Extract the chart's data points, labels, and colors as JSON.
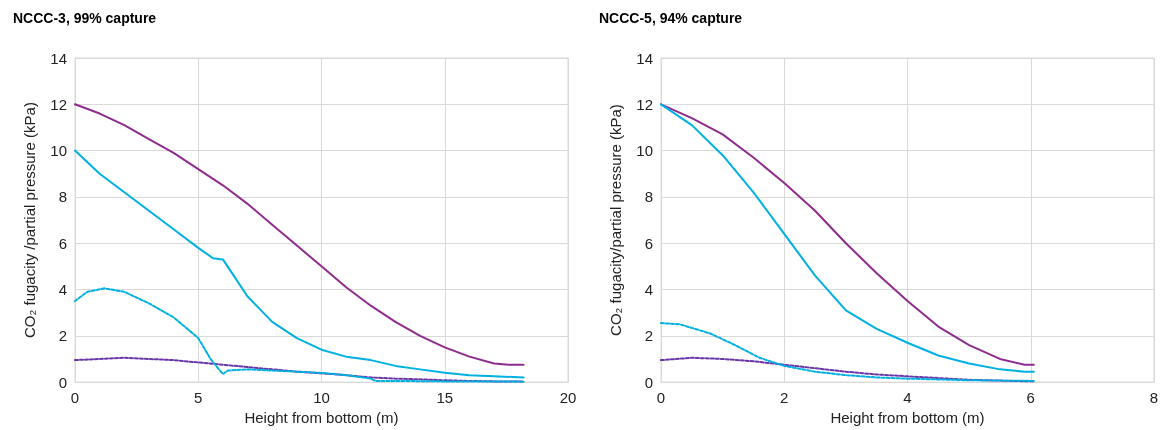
{
  "chart_data": [
    {
      "type": "line",
      "title": "NCCC-3, 99% capture",
      "xlabel": "Height from bottom (m)",
      "ylabel": "CO₂ fugacity /partial pressure (kPa)",
      "xlim": [
        0,
        20
      ],
      "xticks": [
        0,
        5,
        10,
        15,
        20
      ],
      "ylim": [
        0,
        14
      ],
      "yticks": [
        0,
        2,
        4,
        6,
        8,
        10,
        12,
        14
      ],
      "grid": true,
      "marker": "none",
      "series": [
        {
          "color": "#8e2c8e",
          "line_style": "solid",
          "x": [
            0,
            1,
            2,
            3,
            4,
            5,
            6,
            7,
            8,
            9,
            10,
            11,
            12,
            13,
            14,
            15,
            16,
            17,
            17.6,
            18.2
          ],
          "values": [
            12,
            11.6,
            11.1,
            10.5,
            9.9,
            9.2,
            8.5,
            7.7,
            6.8,
            5.9,
            5.0,
            4.1,
            3.3,
            2.6,
            2.0,
            1.5,
            1.1,
            0.8,
            0.75,
            0.75
          ]
        },
        {
          "color": "#00b0e0",
          "line_style": "solid",
          "x": [
            0,
            1,
            2,
            3,
            4,
            5,
            5.6,
            6,
            6.5,
            7,
            8,
            9,
            10,
            11,
            12,
            13,
            14,
            15,
            16,
            17,
            18.2
          ],
          "values": [
            10,
            9.0,
            8.2,
            7.4,
            6.6,
            5.8,
            5.35,
            5.3,
            4.5,
            3.7,
            2.6,
            1.9,
            1.4,
            1.1,
            0.95,
            0.7,
            0.55,
            0.4,
            0.3,
            0.25,
            0.2
          ]
        },
        {
          "color": "#00b0e0",
          "line_style": "dashed",
          "x": [
            0,
            0.5,
            1.2,
            2,
            3,
            4,
            5,
            5.5,
            5.8,
            6,
            6.2,
            7,
            8,
            9,
            10,
            11,
            12,
            12.2,
            13,
            15,
            18.2
          ],
          "values": [
            3.5,
            3.9,
            4.05,
            3.9,
            3.4,
            2.8,
            1.9,
            1.0,
            0.6,
            0.35,
            0.5,
            0.55,
            0.5,
            0.45,
            0.4,
            0.3,
            0.15,
            0.05,
            0.05,
            0.03,
            0.02
          ]
        },
        {
          "color": "#6a35a6",
          "line_style": "dashed",
          "x": [
            0,
            1,
            2,
            3,
            4,
            5,
            6,
            7,
            8,
            9,
            10,
            11,
            12,
            13,
            14,
            15,
            16,
            17,
            18.2
          ],
          "values": [
            0.95,
            1.0,
            1.05,
            1.0,
            0.95,
            0.85,
            0.75,
            0.65,
            0.55,
            0.45,
            0.38,
            0.3,
            0.2,
            0.15,
            0.12,
            0.08,
            0.05,
            0.03,
            0.02
          ]
        }
      ]
    },
    {
      "type": "line",
      "title": "NCCC-5, 94% capture",
      "xlabel": "Height from bottom (m)",
      "ylabel": "CO₂ fugacity/partial pressure (kPa)",
      "xlim": [
        0,
        8
      ],
      "xticks": [
        0,
        2,
        4,
        6,
        8
      ],
      "ylim": [
        0,
        14
      ],
      "yticks": [
        0,
        2,
        4,
        6,
        8,
        10,
        12,
        14
      ],
      "grid": true,
      "marker": "none",
      "series": [
        {
          "color": "#8e2c8e",
          "line_style": "solid",
          "x": [
            0,
            0.5,
            1,
            1.5,
            2,
            2.5,
            3,
            3.5,
            4,
            4.5,
            5,
            5.5,
            5.9,
            6.05
          ],
          "values": [
            12,
            11.4,
            10.7,
            9.7,
            8.6,
            7.4,
            6.0,
            4.7,
            3.5,
            2.4,
            1.6,
            1.0,
            0.75,
            0.75
          ]
        },
        {
          "color": "#00b0e0",
          "line_style": "solid",
          "x": [
            0,
            0.5,
            1,
            1.5,
            2,
            2.5,
            3,
            3.5,
            4,
            4.5,
            5,
            5.5,
            5.9,
            6.05
          ],
          "values": [
            12,
            11.1,
            9.8,
            8.2,
            6.4,
            4.6,
            3.1,
            2.3,
            1.7,
            1.15,
            0.8,
            0.55,
            0.45,
            0.45
          ]
        },
        {
          "color": "#00b0e0",
          "line_style": "dashed",
          "x": [
            0,
            0.3,
            0.8,
            1.2,
            1.6,
            2,
            2.5,
            3,
            3.5,
            4,
            5,
            6.05
          ],
          "values": [
            2.55,
            2.5,
            2.1,
            1.6,
            1.05,
            0.7,
            0.45,
            0.3,
            0.2,
            0.15,
            0.08,
            0.05
          ]
        },
        {
          "color": "#6a35a6",
          "line_style": "dashed",
          "x": [
            0,
            0.5,
            1,
            1.5,
            2,
            2.5,
            3,
            3.5,
            4,
            5,
            6.05
          ],
          "values": [
            0.95,
            1.05,
            1.0,
            0.9,
            0.75,
            0.6,
            0.45,
            0.33,
            0.25,
            0.1,
            0.03
          ]
        }
      ]
    }
  ]
}
